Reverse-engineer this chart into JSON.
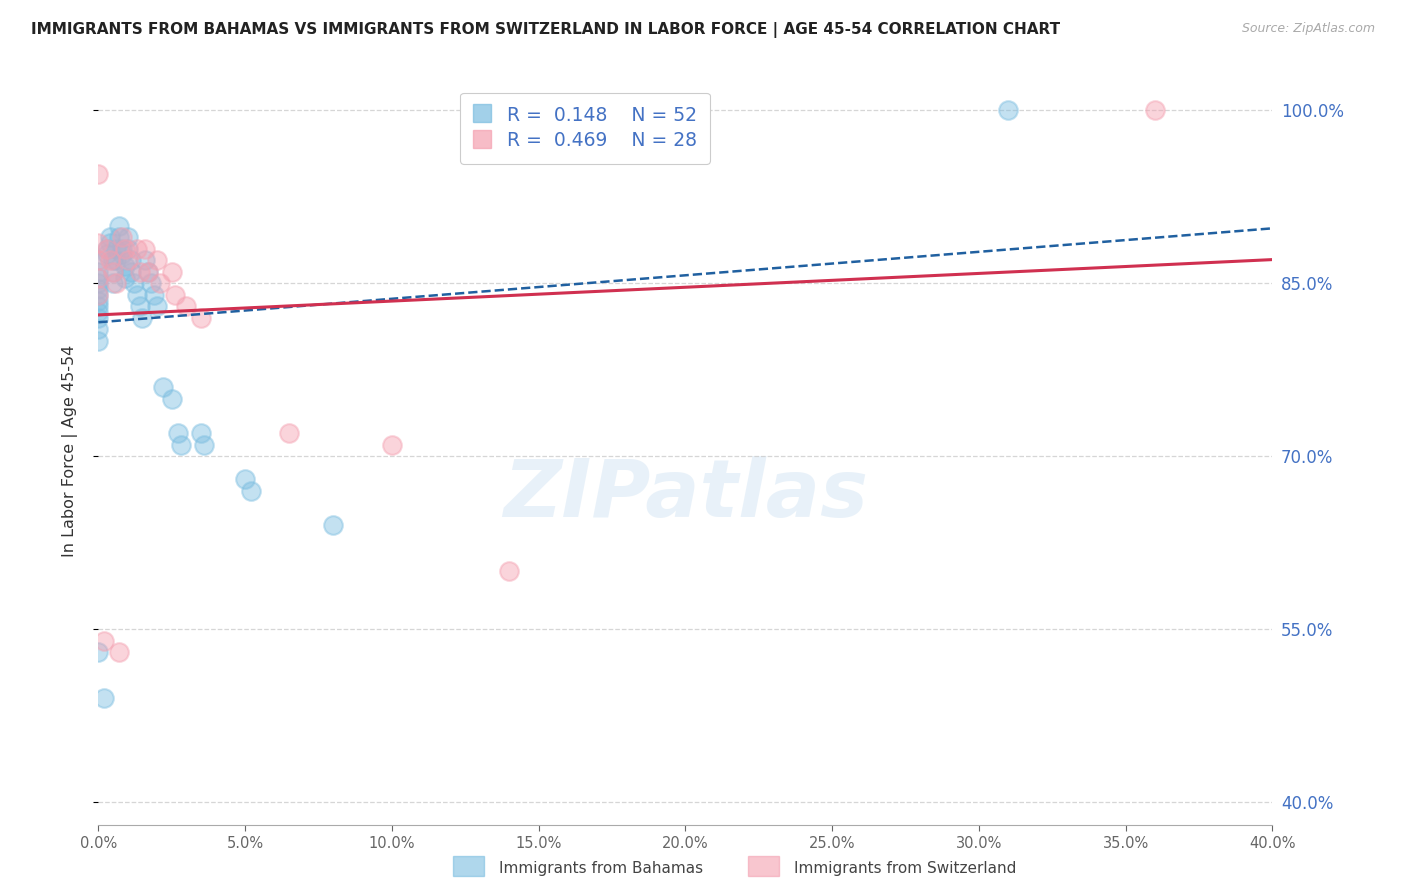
{
  "title": "IMMIGRANTS FROM BAHAMAS VS IMMIGRANTS FROM SWITZERLAND IN LABOR FORCE | AGE 45-54 CORRELATION CHART",
  "source": "Source: ZipAtlas.com",
  "ylabel": "In Labor Force | Age 45-54",
  "xlim": [
    0.0,
    0.4
  ],
  "ylim": [
    0.38,
    1.03
  ],
  "xticks": [
    0.0,
    0.05,
    0.1,
    0.15,
    0.2,
    0.25,
    0.3,
    0.35,
    0.4
  ],
  "yticks_right": [
    0.4,
    0.55,
    0.7,
    0.85,
    1.0
  ],
  "color_bahamas": "#7bbde0",
  "color_switzerland": "#f4a0b0",
  "trendline_color_bahamas": "#2060a0",
  "trendline_color_switzerland": "#d03050",
  "R_bahamas": 0.148,
  "N_bahamas": 52,
  "R_switzerland": 0.469,
  "N_switzerland": 28,
  "watermark": "ZIPatlas",
  "legend_text_color": "#4472c4",
  "right_axis_color": "#4472c4",
  "bahamas_x": [
    0.0,
    0.0,
    0.0,
    0.0,
    0.0,
    0.0,
    0.0,
    0.0,
    0.0,
    0.0,
    0.0,
    0.0,
    0.003,
    0.003,
    0.004,
    0.004,
    0.005,
    0.005,
    0.005,
    0.006,
    0.006,
    0.007,
    0.007,
    0.008,
    0.008,
    0.009,
    0.009,
    0.01,
    0.01,
    0.011,
    0.011,
    0.012,
    0.013,
    0.014,
    0.015,
    0.016,
    0.017,
    0.018,
    0.019,
    0.02,
    0.022,
    0.025,
    0.027,
    0.028,
    0.035,
    0.036,
    0.05,
    0.052,
    0.08,
    0.31,
    0.0,
    0.002
  ],
  "bahamas_y": [
    0.8,
    0.81,
    0.82,
    0.825,
    0.83,
    0.835,
    0.84,
    0.845,
    0.85,
    0.855,
    0.86,
    0.87,
    0.875,
    0.88,
    0.885,
    0.89,
    0.87,
    0.86,
    0.85,
    0.88,
    0.87,
    0.9,
    0.89,
    0.88,
    0.875,
    0.865,
    0.855,
    0.89,
    0.88,
    0.87,
    0.86,
    0.85,
    0.84,
    0.83,
    0.82,
    0.87,
    0.86,
    0.85,
    0.84,
    0.83,
    0.76,
    0.75,
    0.72,
    0.71,
    0.72,
    0.71,
    0.68,
    0.67,
    0.64,
    1.0,
    0.53,
    0.49
  ],
  "switzerland_x": [
    0.0,
    0.0,
    0.0,
    0.0,
    0.0,
    0.003,
    0.004,
    0.005,
    0.006,
    0.008,
    0.009,
    0.01,
    0.013,
    0.014,
    0.016,
    0.017,
    0.02,
    0.021,
    0.025,
    0.026,
    0.03,
    0.035,
    0.065,
    0.1,
    0.14,
    0.36,
    0.002,
    0.007
  ],
  "switzerland_y": [
    0.84,
    0.855,
    0.87,
    0.885,
    0.945,
    0.88,
    0.87,
    0.86,
    0.85,
    0.89,
    0.88,
    0.87,
    0.88,
    0.86,
    0.88,
    0.86,
    0.87,
    0.85,
    0.86,
    0.84,
    0.83,
    0.82,
    0.72,
    0.71,
    0.6,
    1.0,
    0.54,
    0.53
  ]
}
